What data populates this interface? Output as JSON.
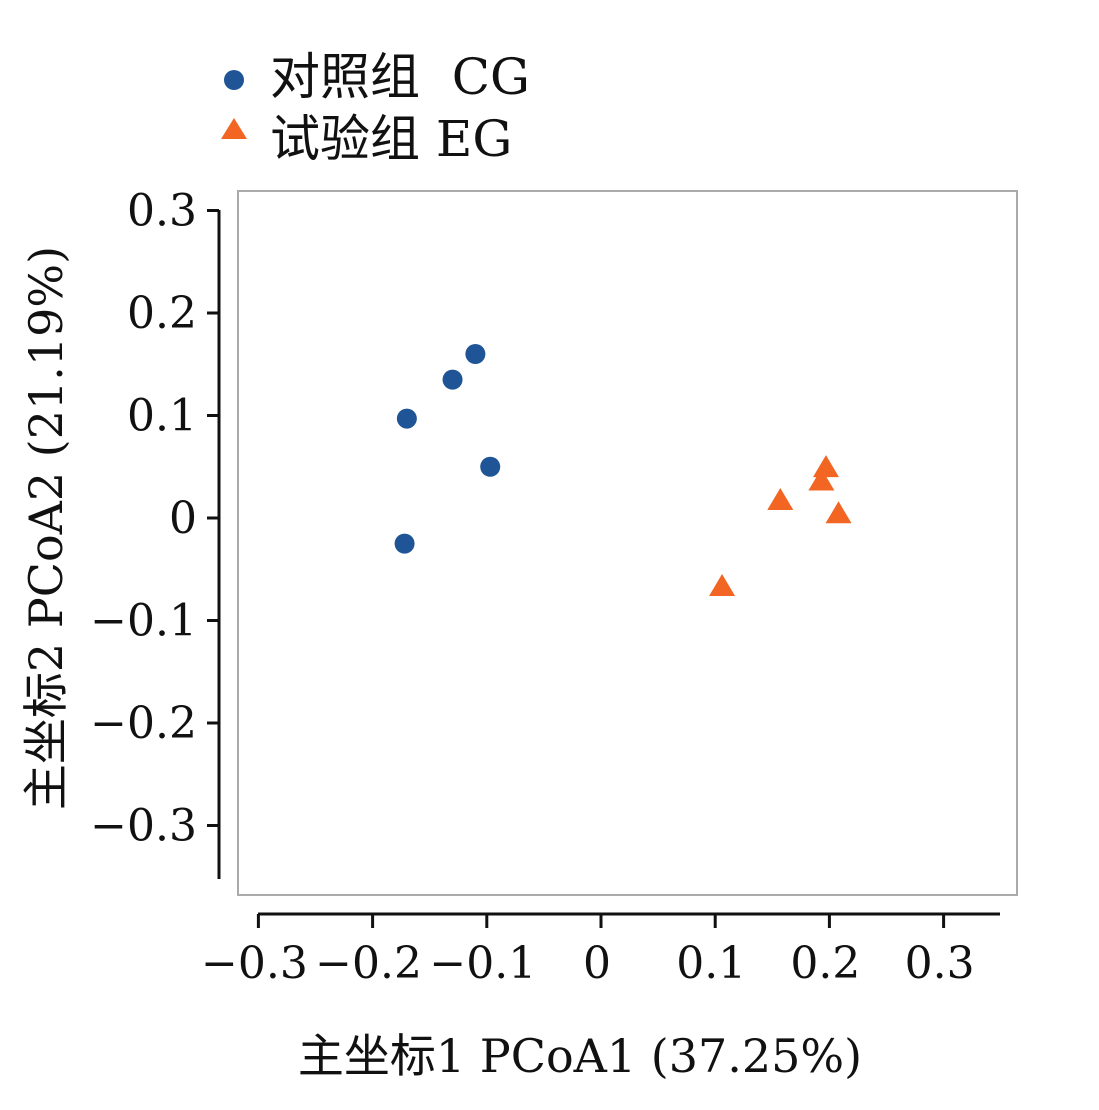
{
  "chart_data": {
    "type": "scatter",
    "title": "",
    "xlabel": "主坐标1 PCoA1 (37.25%)",
    "ylabel": "主坐标2 PCoA2 (21.19%)",
    "xlim": [
      -0.33,
      0.35
    ],
    "ylim": [
      -0.35,
      0.32
    ],
    "xticks": [
      -0.3,
      -0.2,
      -0.1,
      0,
      0.1,
      0.2,
      0.3
    ],
    "xtick_labels": [
      "−0.3",
      "−0.2",
      "−0.1",
      "0",
      "0.1",
      "0.2",
      "0.3"
    ],
    "yticks": [
      0.3,
      0.2,
      0.1,
      0,
      -0.1,
      -0.2,
      -0.3
    ],
    "ytick_labels": [
      "0.3",
      "0.2",
      "0.1",
      "0",
      "−0.1",
      "−0.2",
      "−0.3"
    ],
    "grid": false,
    "legend_position": "top-left",
    "series": [
      {
        "name": "对照组  CG",
        "marker": "circle",
        "color": "#1f5596",
        "points": [
          {
            "x": -0.11,
            "y": 0.16
          },
          {
            "x": -0.13,
            "y": 0.135
          },
          {
            "x": -0.17,
            "y": 0.097
          },
          {
            "x": -0.097,
            "y": 0.05
          },
          {
            "x": -0.172,
            "y": -0.025
          }
        ]
      },
      {
        "name": "试验组 EG",
        "marker": "triangle",
        "color": "#f26522",
        "points": [
          {
            "x": 0.197,
            "y": 0.048
          },
          {
            "x": 0.193,
            "y": 0.035
          },
          {
            "x": 0.157,
            "y": 0.016
          },
          {
            "x": 0.208,
            "y": 0.003
          },
          {
            "x": 0.106,
            "y": -0.068
          }
        ]
      }
    ]
  }
}
